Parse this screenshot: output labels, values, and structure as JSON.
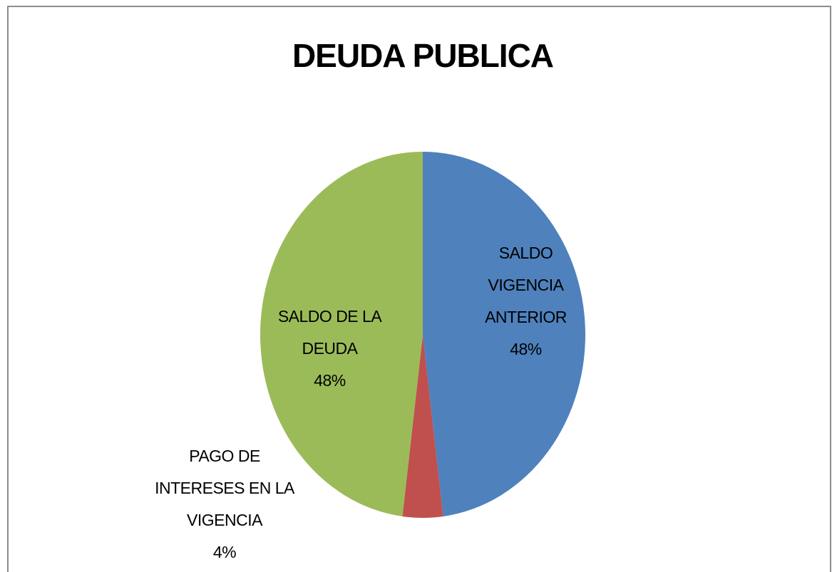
{
  "chart_data": {
    "type": "pie",
    "title": "DEUDA PUBLICA",
    "categories": [
      "SALDO VIGENCIA ANTERIOR",
      "PAGO DE INTERESES EN LA VIGENCIA",
      "SALDO DE LA DEUDA"
    ],
    "values": [
      48,
      4,
      48
    ],
    "value_labels": [
      "48%",
      "4%",
      "48%"
    ],
    "colors": [
      "#4f81bd",
      "#c0504d",
      "#9bbb59"
    ]
  }
}
